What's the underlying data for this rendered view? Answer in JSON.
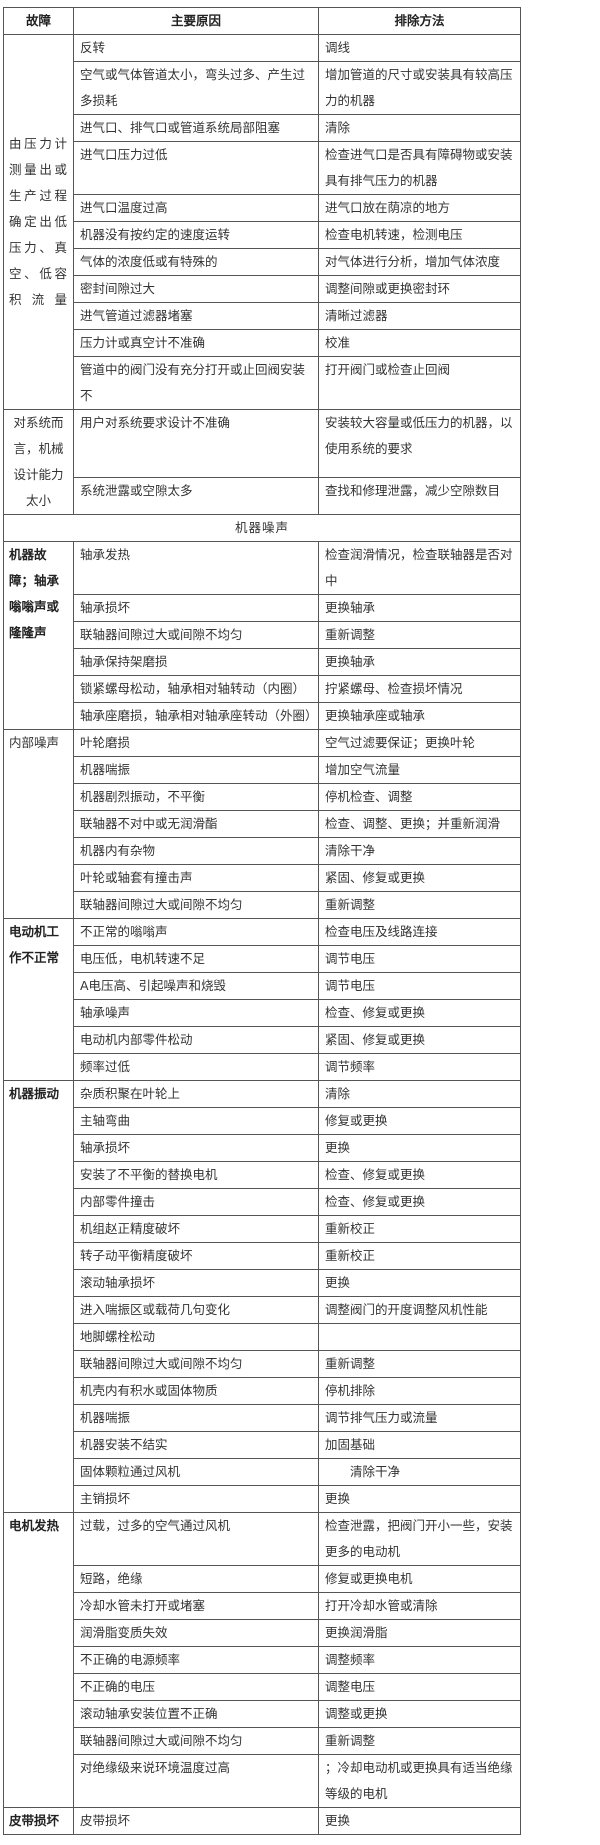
{
  "header": {
    "fault": "故障",
    "cause": "主要原因",
    "remedy": "排除方法"
  },
  "groups": [
    {
      "label": "由压力计测量出或生产过程确定出低压力、真空、低容积流量",
      "bold": false,
      "align": "mid",
      "rows": [
        {
          "cause": "反转",
          "remedy": "调线"
        },
        {
          "cause": "空气或气体管道太小，弯头过多、产生过多损耗",
          "remedy": "增加管道的尺寸或安装具有较高压力的机器"
        },
        {
          "cause": "进气口、排气口或管道系统局部阻塞",
          "remedy": "清除"
        },
        {
          "cause": "进气口压力过低",
          "remedy": "检查进气口是否具有障碍物或安装具有排气压力的机器"
        },
        {
          "cause": "进气口温度过高",
          "remedy": "进气口放在荫凉的地方"
        },
        {
          "cause": "机器没有按约定的速度运转",
          "remedy": "检查电机转速，检测电压"
        },
        {
          "cause": "气体的浓度低或有特殊的",
          "remedy": "对气体进行分析，增加气体浓度"
        },
        {
          "cause": "密封间隙过大",
          "remedy": "调整间隙或更换密封环"
        },
        {
          "cause": "进气管道过滤器堵塞",
          "remedy": "清晰过滤器"
        },
        {
          "cause": "压力计或真空计不准确",
          "remedy": "校准"
        },
        {
          "cause": "管道中的阀门没有充分打开或止回阀安装不",
          "remedy": "打开阀门或检查止回阀"
        }
      ]
    },
    {
      "label": "对系统而言，机械设计能力太小",
      "bold": false,
      "align": "center",
      "rows": [
        {
          "cause": "用户对系统要求设计不准确",
          "remedy": "安装较大容量或低压力的机器，以使用系统的要求"
        },
        {
          "cause": "系统泄露或空隙太多",
          "remedy": "查找和修理泄露，减少空隙数目"
        }
      ]
    },
    {
      "section": "机器噪声"
    },
    {
      "label": "机器故障；轴承嗡嗡声或隆隆声",
      "bold": true,
      "align": "top",
      "rows": [
        {
          "cause": "轴承发热",
          "remedy": "检查润滑情况，检查联轴器是否对中"
        },
        {
          "cause": "轴承损坏",
          "remedy": "更换轴承"
        },
        {
          "cause": "联轴器间隙过大或间隙不均匀",
          "remedy": "重新调整"
        },
        {
          "cause": "轴承保持架磨损",
          "remedy": "更换轴承"
        },
        {
          "cause": "锁紧螺母松动，轴承相对轴转动（内圈）",
          "remedy": "拧紧螺母、检查损坏情况"
        },
        {
          "cause": "轴承座磨损，轴承相对轴承座转动（外圈）",
          "remedy": "更换轴承座或轴承"
        }
      ]
    },
    {
      "label": "内部噪声",
      "bold": false,
      "align": "top",
      "rows": [
        {
          "cause": "叶轮磨损",
          "remedy": "空气过滤要保证；更换叶轮"
        },
        {
          "cause": "机器喘振",
          "remedy": "增加空气流量"
        },
        {
          "cause": "机器剧烈振动，不平衡",
          "remedy": "停机检查、调整"
        },
        {
          "cause": "联轴器不对中或无润滑酯",
          "remedy": "检查、调整、更换；并重新润滑"
        },
        {
          "cause": "机器内有杂物",
          "remedy": "清除干净"
        },
        {
          "cause": "叶轮或轴套有撞击声",
          "remedy": "紧固、修复或更换"
        },
        {
          "cause": "联轴器间隙过大或间隙不均匀",
          "remedy": "重新调整"
        }
      ]
    },
    {
      "label": "电动机工作不正常",
      "bold": true,
      "align": "top",
      "rows": [
        {
          "cause": "不正常的嗡嗡声",
          "remedy": "检查电压及线路连接"
        },
        {
          "cause": "电压低，电机转速不足",
          "remedy": "调节电压"
        },
        {
          "cause": "A电压高、引起噪声和烧毁",
          "remedy": "调节电压"
        },
        {
          "cause": "轴承噪声",
          "remedy": "检查、修复或更换"
        },
        {
          "cause": "电动机内部零件松动",
          "remedy": "紧固、修复或更换"
        },
        {
          "cause": "频率过低",
          "remedy": "调节频率"
        }
      ]
    },
    {
      "label": "机器振动",
      "bold": true,
      "align": "top",
      "rows": [
        {
          "cause": "杂质积聚在叶轮上",
          "remedy": "清除"
        },
        {
          "cause": "主轴弯曲",
          "remedy": "修复或更换"
        },
        {
          "cause": "轴承损坏",
          "remedy": "更换"
        },
        {
          "cause": "安装了不平衡的替换电机",
          "remedy": "检查、修复或更换"
        },
        {
          "cause": "内部零件撞击",
          "remedy": "检查、修复或更换"
        },
        {
          "cause": "机组赵正精度破坏",
          "remedy": "重新校正"
        },
        {
          "cause": "转子动平衡精度破坏",
          "remedy": "重新校正"
        },
        {
          "cause": "滚动轴承损坏",
          "remedy": "更换"
        },
        {
          "cause": "进入喘振区或载荷几句变化",
          "remedy": "调整阀门的开度调整风机性能"
        },
        {
          "cause": "地脚螺栓松动",
          "remedy": ""
        },
        {
          "cause": "联轴器间隙过大或间隙不均匀",
          "remedy": "重新调整"
        },
        {
          "cause": "机壳内有积水或固体物质",
          "remedy": "停机排除"
        },
        {
          "cause": "机器喘振",
          "remedy": "调节排气压力或流量"
        },
        {
          "cause": "机器安装不结实",
          "remedy": "加固基础"
        },
        {
          "cause": "固体颗粒通过风机",
          "remedy": "　　清除干净"
        },
        {
          "cause": "主销损坏",
          "remedy": "更换"
        }
      ]
    },
    {
      "label": "电机发热",
      "bold": true,
      "align": "top",
      "rows": [
        {
          "cause": "过载，过多的空气通过风机",
          "remedy": "检查泄露，把阀门开小一些，安装更多的电动机"
        },
        {
          "cause": "短路，绝缘",
          "remedy": "修复或更换电机"
        },
        {
          "cause": "冷却水管未打开或堵塞",
          "remedy": "打开冷却水管或清除"
        },
        {
          "cause": "润滑脂变质失效",
          "remedy": "更换润滑脂"
        },
        {
          "cause": "不正确的电源频率",
          "remedy": "调整频率"
        },
        {
          "cause": "不正确的电压",
          "remedy": "调整电压"
        },
        {
          "cause": "滚动轴承安装位置不正确",
          "remedy": "调整或更换"
        },
        {
          "cause": "联轴器间隙过大或间隙不均匀",
          "remedy": "重新调整"
        },
        {
          "cause": "对绝缘级来说环境温度过高",
          "remedy": "；冷却电动机或更换具有适当绝缘等级的电机"
        }
      ]
    },
    {
      "label": "皮带损坏",
      "bold": true,
      "align": "top",
      "rows": [
        {
          "cause": "皮带损坏",
          "remedy": "更换"
        }
      ]
    }
  ]
}
